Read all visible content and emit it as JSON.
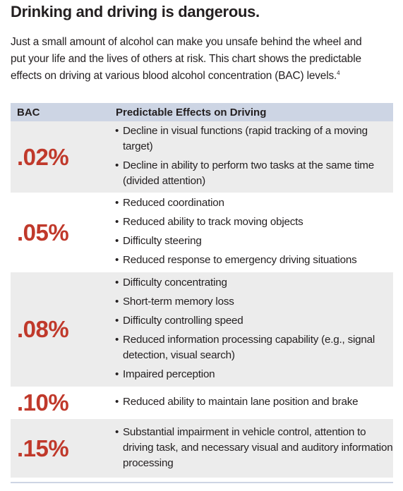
{
  "heading": "Drinking and driving is dangerous.",
  "intro": {
    "lines": [
      "Just a small amount of alcohol can make you unsafe behind the wheel and",
      "put your life and the lives of others at risk. This chart shows the predictable",
      "effects on driving at various blood alcohol concentration (BAC) levels."
    ],
    "footnote": "4"
  },
  "table": {
    "headers": {
      "bac": "BAC",
      "effects": "Predictable Effects on Driving"
    },
    "bullet": "•",
    "rows": [
      {
        "bac": ".02%",
        "effects": [
          "Decline in visual functions (rapid tracking of a moving target)",
          "Decline in ability to perform two tasks at the same time (divided attention)"
        ]
      },
      {
        "bac": ".05%",
        "effects": [
          "Reduced coordination",
          "Reduced ability to track moving objects",
          "Difficulty steering",
          "Reduced response to emergency driving situations"
        ]
      },
      {
        "bac": ".08%",
        "effects": [
          "Difficulty concentrating",
          "Short-term memory loss",
          "Difficulty controlling speed",
          "Reduced information processing capability (e.g., signal detection, visual search)",
          "Impaired perception"
        ]
      },
      {
        "bac": ".10%",
        "effects": [
          "Reduced ability to maintain lane position and brake"
        ]
      },
      {
        "bac": ".15%",
        "effects": [
          "Substantial impairment in vehicle control, attention to driving task, and necessary visual and auditory information processing"
        ]
      }
    ]
  },
  "colors": {
    "bac_value": "#c0392b",
    "header_bg": "#cdd5e4",
    "row_shade": "#ececec"
  }
}
